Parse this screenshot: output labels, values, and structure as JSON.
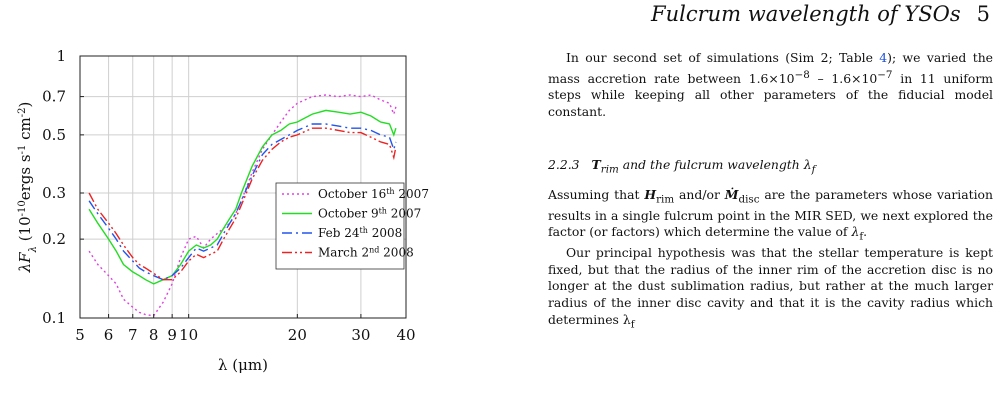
{
  "header": {
    "running_title": "Fulcrum wavelength of YSOs",
    "page_number": "5"
  },
  "text": {
    "para1_a": "In our second set of simulations (Sim 2; Table ",
    "para1_ref": "4",
    "para1_b": "); we varied the mass accretion rate between 1.6×10",
    "para1_sup1": "−8",
    "para1_c": " – 1.6×10",
    "para1_sup2": "−7",
    "para1_d": " in 11 uniform steps while keeping all other parameters of the fiducial model constant.",
    "heading_number": "2.2.3",
    "heading_sym": "T",
    "heading_sub": "rim",
    "heading_text": " and the fulcrum wavelength λ",
    "heading_sub2": "f",
    "para2_a": "Assuming that ",
    "para2_h": "H",
    "para2_hsub": "rim",
    "para2_b": " and/or ",
    "para2_m": "Ṁ",
    "para2_msub": "disc",
    "para2_c": " are the parameters whose variation results in a single fulcrum point in the MIR SED, we next explored the factor (or factors) which determine the value of ",
    "para2_lam": "λ",
    "para2_lamsub": "f",
    "para2_d": ".",
    "para3": "Our principal hypothesis was that the stellar temperature is kept fixed, but that the radius of the inner rim of the accretion disc is no longer at the dust sublimation radius, but rather at the much larger radius of the inner disc cavity and that it is the cavity radius which determines λ",
    "para3_sub": "f"
  },
  "chart_data": {
    "type": "line",
    "xscale": "log",
    "yscale": "log",
    "xlim": [
      5,
      40
    ],
    "ylim": [
      0.1,
      1
    ],
    "xticks": [
      5,
      6,
      7,
      8,
      9,
      10,
      20,
      30,
      40
    ],
    "xtick_labels": [
      "5",
      "6",
      "7",
      "8",
      "9",
      "10",
      "20",
      "30",
      "40"
    ],
    "yticks": [
      0.1,
      0.2,
      0.3,
      0.5,
      0.7,
      1
    ],
    "ytick_labels": [
      "0.1",
      "0.2",
      "0.3",
      "0.5",
      "0.7",
      "1"
    ],
    "xlabel": "λ (μm)",
    "ylabel_main": "λF",
    "ylabel_sub": "λ",
    "ylabel_unit_a": " (10",
    "ylabel_unit_sup1": "-10",
    "ylabel_unit_b": "ergs s",
    "ylabel_unit_sup2": "-1",
    "ylabel_unit_c": " cm",
    "ylabel_unit_sup3": "-2",
    "ylabel_unit_d": ")",
    "grid": true,
    "legend_position": "right-center",
    "series": [
      {
        "name": "October 16th 2007",
        "legend_parts": [
          "October 16",
          "th",
          " 2007"
        ],
        "color": "#e040e0",
        "dash": "2,3",
        "x": [
          5.3,
          5.6,
          6.0,
          6.3,
          6.6,
          7.0,
          7.3,
          7.6,
          8.0,
          8.5,
          9.0,
          9.5,
          10.0,
          10.5,
          11.0,
          11.5,
          12.0,
          12.5,
          13.0,
          13.5,
          14.0,
          15.0,
          16.0,
          17.0,
          18.0,
          19.0,
          20.0,
          22.0,
          24.0,
          26.0,
          28.0,
          30.0,
          32.0,
          34.0,
          36.0,
          37.0,
          37.5
        ],
        "y": [
          0.18,
          0.16,
          0.145,
          0.135,
          0.118,
          0.11,
          0.105,
          0.103,
          0.102,
          0.115,
          0.135,
          0.17,
          0.2,
          0.205,
          0.185,
          0.2,
          0.21,
          0.22,
          0.23,
          0.25,
          0.28,
          0.36,
          0.44,
          0.5,
          0.56,
          0.62,
          0.66,
          0.7,
          0.71,
          0.7,
          0.71,
          0.7,
          0.71,
          0.68,
          0.66,
          0.6,
          0.64
        ]
      },
      {
        "name": "October 9th 2007",
        "legend_parts": [
          "October 9",
          "th",
          " 2007"
        ],
        "color": "#22dd22",
        "dash": "",
        "x": [
          5.3,
          5.6,
          6.0,
          6.3,
          6.6,
          7.0,
          7.3,
          7.6,
          8.0,
          8.5,
          9.0,
          9.5,
          10.0,
          10.5,
          11.0,
          11.5,
          12.0,
          12.5,
          13.0,
          13.5,
          14.0,
          15.0,
          16.0,
          17.0,
          18.0,
          19.0,
          20.0,
          22.0,
          24.0,
          26.0,
          28.0,
          30.0,
          32.0,
          34.0,
          36.0,
          37.0,
          37.5
        ],
        "y": [
          0.26,
          0.23,
          0.2,
          0.18,
          0.16,
          0.15,
          0.145,
          0.14,
          0.135,
          0.14,
          0.145,
          0.16,
          0.18,
          0.19,
          0.185,
          0.19,
          0.2,
          0.22,
          0.24,
          0.26,
          0.3,
          0.38,
          0.45,
          0.5,
          0.52,
          0.55,
          0.56,
          0.6,
          0.62,
          0.61,
          0.6,
          0.61,
          0.59,
          0.56,
          0.55,
          0.5,
          0.53
        ]
      },
      {
        "name": "Feb 24th 2008",
        "legend_parts": [
          "Feb 24",
          "th",
          " 2008"
        ],
        "color": "#2255ee",
        "dash": "10,4,2,4",
        "x": [
          5.3,
          5.6,
          6.0,
          6.3,
          6.6,
          7.0,
          7.3,
          7.6,
          8.0,
          8.5,
          9.0,
          9.5,
          10.0,
          10.5,
          11.0,
          11.5,
          12.0,
          12.5,
          13.0,
          13.5,
          14.0,
          15.0,
          16.0,
          17.0,
          18.0,
          19.0,
          20.0,
          22.0,
          24.0,
          26.0,
          28.0,
          30.0,
          32.0,
          34.0,
          36.0,
          37.0,
          37.5
        ],
        "y": [
          0.28,
          0.25,
          0.22,
          0.2,
          0.18,
          0.165,
          0.155,
          0.15,
          0.145,
          0.14,
          0.145,
          0.155,
          0.17,
          0.185,
          0.18,
          0.185,
          0.19,
          0.21,
          0.23,
          0.25,
          0.28,
          0.35,
          0.42,
          0.46,
          0.48,
          0.5,
          0.52,
          0.55,
          0.55,
          0.54,
          0.53,
          0.53,
          0.52,
          0.5,
          0.49,
          0.44,
          0.47
        ]
      },
      {
        "name": "March 2nd 2008",
        "legend_parts": [
          "March 2",
          "nd",
          " 2008"
        ],
        "color": "#ee2222",
        "dash": "10,3,2,3,2,3",
        "x": [
          5.3,
          5.6,
          6.0,
          6.3,
          6.6,
          7.0,
          7.3,
          7.6,
          8.0,
          8.5,
          9.0,
          9.5,
          10.0,
          10.5,
          11.0,
          11.5,
          12.0,
          12.5,
          13.0,
          13.5,
          14.0,
          15.0,
          16.0,
          17.0,
          18.0,
          19.0,
          20.0,
          22.0,
          24.0,
          26.0,
          28.0,
          30.0,
          32.0,
          34.0,
          36.0,
          37.0,
          37.5
        ],
        "y": [
          0.3,
          0.26,
          0.23,
          0.21,
          0.19,
          0.17,
          0.16,
          0.155,
          0.148,
          0.14,
          0.14,
          0.15,
          0.165,
          0.175,
          0.17,
          0.175,
          0.18,
          0.2,
          0.22,
          0.24,
          0.27,
          0.34,
          0.4,
          0.44,
          0.47,
          0.49,
          0.5,
          0.53,
          0.53,
          0.52,
          0.51,
          0.51,
          0.49,
          0.47,
          0.46,
          0.41,
          0.45
        ]
      }
    ]
  }
}
